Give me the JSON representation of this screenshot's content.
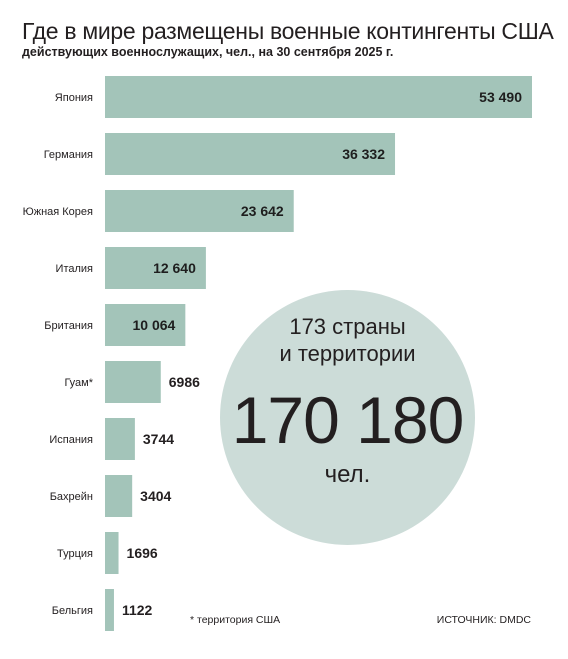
{
  "chart_data": {
    "type": "bar",
    "orientation": "horizontal",
    "title": "Где в мире размещены военные контингенты США",
    "subtitle": "действующих военнослужащих, чел., на 30 сентября 2025 г.",
    "categories": [
      "Япония",
      "Германия",
      "Южная Корея",
      "Италия",
      "Британия",
      "Гуам*",
      "Испания",
      "Бахрейн",
      "Турция",
      "Бельгия"
    ],
    "values": [
      53490,
      36332,
      23642,
      12640,
      10064,
      6986,
      3744,
      3404,
      1696,
      1122
    ],
    "value_labels": [
      "53 490",
      "36 332",
      "23 642",
      "12 640",
      "10 064",
      "6986",
      "3744",
      "3404",
      "1696",
      "1122"
    ],
    "xlim": [
      0,
      53490
    ],
    "grid": false,
    "legend": "none",
    "bar_color": "#a3c4b9",
    "callout": {
      "line1": "173 страны",
      "line2": "и территории",
      "total": "170 180",
      "unit": "чел.",
      "color": "#ccdcd8"
    },
    "footnote": "* территория США",
    "source": "ИСТОЧНИК: DMDC"
  }
}
